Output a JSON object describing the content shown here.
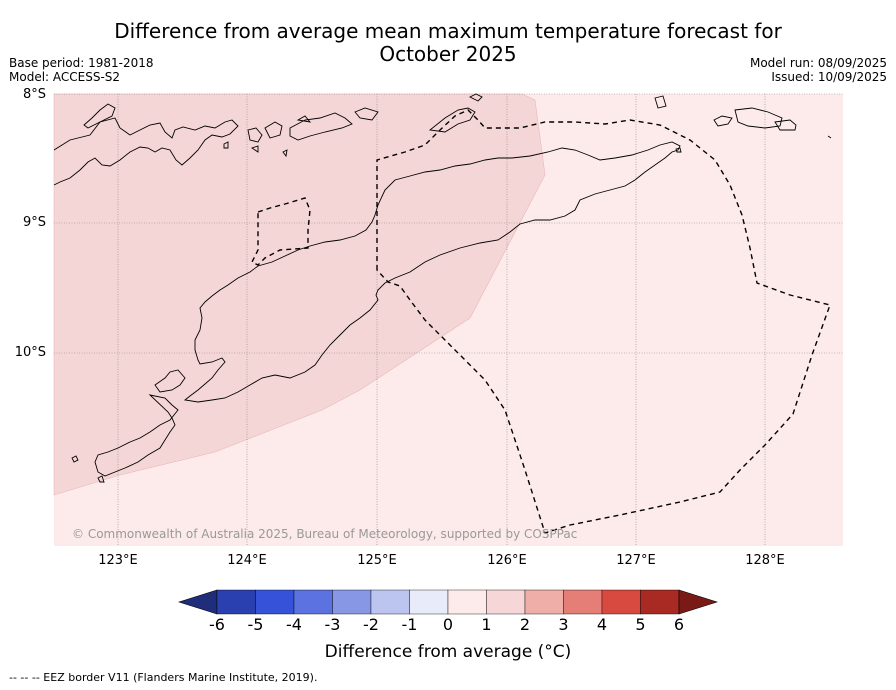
{
  "title_line1": "Difference from average mean maximum temperature forecast for",
  "title_line2": "October 2025",
  "meta_left": {
    "base_period": "Base period: 1981-2018",
    "model": "Model: ACCESS-S2"
  },
  "meta_right": {
    "model_run": "Model run: 08/09/2025",
    "issued": "Issued: 10/09/2025"
  },
  "axes": {
    "lat_labels": [
      "8°S",
      "9°S",
      "10°S"
    ],
    "lon_labels": [
      "123°E",
      "124°E",
      "125°E",
      "126°E",
      "127°E",
      "128°E"
    ]
  },
  "copyright": "© Commonwealth of Australia 2025, Bureau of Meteorology, supported by COSPPac",
  "colorbar": {
    "ticks": [
      "-6",
      "-5",
      "-4",
      "-3",
      "-2",
      "-1",
      "0",
      "1",
      "2",
      "3",
      "4",
      "5",
      "6"
    ],
    "colors": [
      "#1f2d7a",
      "#2a3fb0",
      "#3552d8",
      "#5b72e0",
      "#8797e6",
      "#bcc5f0",
      "#e8ecfa",
      "#fcebea",
      "#f6d6d6",
      "#efaea8",
      "#e47e76",
      "#d84a40",
      "#a92a22",
      "#7a1a16"
    ],
    "label": "Difference from average (°C)"
  },
  "regions": {
    "one_to_two_color": "#f5d6d6",
    "zero_to_one_color": "#fcebea"
  },
  "footer": "--  --  -- EEZ border V11 (Flanders Marine Institute, 2019)."
}
